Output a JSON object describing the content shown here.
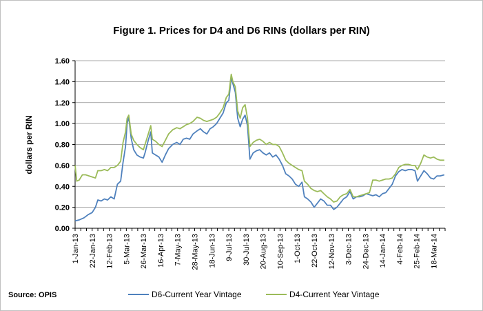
{
  "source_label": "Source: OPIS",
  "chart_data": {
    "type": "line",
    "title": "Figure 1. Prices for D4 and D6 RINs (dollars per RIN)",
    "xlabel": "",
    "ylabel": "dollars per RIN",
    "ylim": [
      0,
      1.6
    ],
    "yticks": [
      "0.00",
      "0.20",
      "0.40",
      "0.60",
      "0.80",
      "1.00",
      "1.20",
      "1.40",
      "1.60"
    ],
    "xlim": [
      "2013-01-01",
      "2014-04-01"
    ],
    "xticks": [
      "1-Jan-13",
      "22-Jan-13",
      "12-Feb-13",
      "5-Mar-13",
      "26-Mar-13",
      "16-Apr-13",
      "7-May-13",
      "28-May-13",
      "18-Jun-13",
      "9-Jul-13",
      "30-Jul-13",
      "20-Aug-13",
      "10-Sep-13",
      "1-Oct-13",
      "22-Oct-13",
      "12-Nov-13",
      "3-Dec-13",
      "24-Dec-13",
      "14-Jan-14",
      "4-Feb-14",
      "25-Feb-14",
      "18-Mar-14"
    ],
    "grid": true,
    "legend_position": "bottom",
    "series": [
      {
        "name": "D6-Current Year Vintage",
        "color": "#4f81bd",
        "points": [
          [
            "2013-01-01",
            0.07
          ],
          [
            "2013-01-06",
            0.08
          ],
          [
            "2013-01-12",
            0.1
          ],
          [
            "2013-01-17",
            0.13
          ],
          [
            "2013-01-22",
            0.15
          ],
          [
            "2013-01-26",
            0.2
          ],
          [
            "2013-01-29",
            0.27
          ],
          [
            "2013-02-02",
            0.26
          ],
          [
            "2013-02-06",
            0.28
          ],
          [
            "2013-02-10",
            0.27
          ],
          [
            "2013-02-14",
            0.3
          ],
          [
            "2013-02-18",
            0.28
          ],
          [
            "2013-02-22",
            0.42
          ],
          [
            "2013-02-26",
            0.45
          ],
          [
            "2013-03-01",
            0.63
          ],
          [
            "2013-03-04",
            0.78
          ],
          [
            "2013-03-06",
            1.0
          ],
          [
            "2013-03-08",
            1.06
          ],
          [
            "2013-03-11",
            0.86
          ],
          [
            "2013-03-14",
            0.75
          ],
          [
            "2013-03-18",
            0.7
          ],
          [
            "2013-03-22",
            0.68
          ],
          [
            "2013-03-26",
            0.67
          ],
          [
            "2013-03-28",
            0.72
          ],
          [
            "2013-04-01",
            0.84
          ],
          [
            "2013-04-04",
            0.92
          ],
          [
            "2013-04-06",
            0.72
          ],
          [
            "2013-04-10",
            0.7
          ],
          [
            "2013-04-14",
            0.68
          ],
          [
            "2013-04-18",
            0.63
          ],
          [
            "2013-04-22",
            0.7
          ],
          [
            "2013-04-26",
            0.76
          ],
          [
            "2013-05-01",
            0.8
          ],
          [
            "2013-05-06",
            0.82
          ],
          [
            "2013-05-10",
            0.8
          ],
          [
            "2013-05-14",
            0.85
          ],
          [
            "2013-05-18",
            0.86
          ],
          [
            "2013-05-22",
            0.85
          ],
          [
            "2013-05-26",
            0.9
          ],
          [
            "2013-05-31",
            0.93
          ],
          [
            "2013-06-04",
            0.95
          ],
          [
            "2013-06-08",
            0.92
          ],
          [
            "2013-06-12",
            0.9
          ],
          [
            "2013-06-16",
            0.95
          ],
          [
            "2013-06-20",
            0.97
          ],
          [
            "2013-06-24",
            1.0
          ],
          [
            "2013-06-28",
            1.05
          ],
          [
            "2013-07-02",
            1.1
          ],
          [
            "2013-07-06",
            1.2
          ],
          [
            "2013-07-09",
            1.22
          ],
          [
            "2013-07-12",
            1.44
          ],
          [
            "2013-07-14",
            1.38
          ],
          [
            "2013-07-17",
            1.3
          ],
          [
            "2013-07-20",
            1.05
          ],
          [
            "2013-07-23",
            0.97
          ],
          [
            "2013-07-26",
            1.04
          ],
          [
            "2013-07-29",
            1.08
          ],
          [
            "2013-08-01",
            0.98
          ],
          [
            "2013-08-04",
            0.66
          ],
          [
            "2013-08-08",
            0.72
          ],
          [
            "2013-08-12",
            0.74
          ],
          [
            "2013-08-16",
            0.75
          ],
          [
            "2013-08-20",
            0.72
          ],
          [
            "2013-08-24",
            0.7
          ],
          [
            "2013-08-28",
            0.72
          ],
          [
            "2013-09-01",
            0.68
          ],
          [
            "2013-09-05",
            0.7
          ],
          [
            "2013-09-09",
            0.66
          ],
          [
            "2013-09-13",
            0.6
          ],
          [
            "2013-09-17",
            0.52
          ],
          [
            "2013-09-21",
            0.5
          ],
          [
            "2013-09-25",
            0.47
          ],
          [
            "2013-09-29",
            0.42
          ],
          [
            "2013-10-03",
            0.4
          ],
          [
            "2013-10-07",
            0.44
          ],
          [
            "2013-10-10",
            0.3
          ],
          [
            "2013-10-14",
            0.28
          ],
          [
            "2013-10-18",
            0.25
          ],
          [
            "2013-10-22",
            0.2
          ],
          [
            "2013-10-26",
            0.24
          ],
          [
            "2013-10-30",
            0.28
          ],
          [
            "2013-11-03",
            0.26
          ],
          [
            "2013-11-07",
            0.22
          ],
          [
            "2013-11-11",
            0.22
          ],
          [
            "2013-11-15",
            0.18
          ],
          [
            "2013-11-19",
            0.2
          ],
          [
            "2013-11-23",
            0.24
          ],
          [
            "2013-11-27",
            0.28
          ],
          [
            "2013-12-01",
            0.3
          ],
          [
            "2013-12-05",
            0.35
          ],
          [
            "2013-12-09",
            0.28
          ],
          [
            "2013-12-13",
            0.3
          ],
          [
            "2013-12-17",
            0.3
          ],
          [
            "2013-12-21",
            0.31
          ],
          [
            "2013-12-25",
            0.33
          ],
          [
            "2013-12-29",
            0.32
          ],
          [
            "2014-01-02",
            0.31
          ],
          [
            "2014-01-06",
            0.32
          ],
          [
            "2014-01-10",
            0.3
          ],
          [
            "2014-01-14",
            0.33
          ],
          [
            "2014-01-18",
            0.34
          ],
          [
            "2014-01-22",
            0.38
          ],
          [
            "2014-01-26",
            0.42
          ],
          [
            "2014-01-30",
            0.5
          ],
          [
            "2014-02-03",
            0.54
          ],
          [
            "2014-02-07",
            0.56
          ],
          [
            "2014-02-11",
            0.55
          ],
          [
            "2014-02-15",
            0.56
          ],
          [
            "2014-02-19",
            0.56
          ],
          [
            "2014-02-23",
            0.55
          ],
          [
            "2014-02-26",
            0.45
          ],
          [
            "2014-03-02",
            0.5
          ],
          [
            "2014-03-06",
            0.55
          ],
          [
            "2014-03-10",
            0.52
          ],
          [
            "2014-03-14",
            0.48
          ],
          [
            "2014-03-18",
            0.47
          ],
          [
            "2014-03-22",
            0.5
          ],
          [
            "2014-03-26",
            0.5
          ],
          [
            "2014-03-31",
            0.51
          ]
        ]
      },
      {
        "name": "D4-Current Year Vintage",
        "color": "#9bbb59",
        "points": [
          [
            "2013-01-01",
            0.6
          ],
          [
            "2013-01-03",
            0.45
          ],
          [
            "2013-01-06",
            0.46
          ],
          [
            "2013-01-10",
            0.51
          ],
          [
            "2013-01-14",
            0.51
          ],
          [
            "2013-01-18",
            0.5
          ],
          [
            "2013-01-22",
            0.49
          ],
          [
            "2013-01-26",
            0.48
          ],
          [
            "2013-01-29",
            0.55
          ],
          [
            "2013-02-02",
            0.55
          ],
          [
            "2013-02-06",
            0.56
          ],
          [
            "2013-02-10",
            0.55
          ],
          [
            "2013-02-14",
            0.58
          ],
          [
            "2013-02-18",
            0.58
          ],
          [
            "2013-02-22",
            0.6
          ],
          [
            "2013-02-26",
            0.64
          ],
          [
            "2013-03-01",
            0.82
          ],
          [
            "2013-03-04",
            0.92
          ],
          [
            "2013-03-06",
            1.05
          ],
          [
            "2013-03-08",
            1.08
          ],
          [
            "2013-03-11",
            0.9
          ],
          [
            "2013-03-14",
            0.84
          ],
          [
            "2013-03-18",
            0.8
          ],
          [
            "2013-03-22",
            0.77
          ],
          [
            "2013-03-26",
            0.75
          ],
          [
            "2013-03-28",
            0.8
          ],
          [
            "2013-04-01",
            0.9
          ],
          [
            "2013-04-04",
            0.98
          ],
          [
            "2013-04-06",
            0.85
          ],
          [
            "2013-04-10",
            0.83
          ],
          [
            "2013-04-14",
            0.8
          ],
          [
            "2013-04-18",
            0.78
          ],
          [
            "2013-04-22",
            0.84
          ],
          [
            "2013-04-26",
            0.9
          ],
          [
            "2013-05-01",
            0.94
          ],
          [
            "2013-05-06",
            0.96
          ],
          [
            "2013-05-10",
            0.95
          ],
          [
            "2013-05-14",
            0.97
          ],
          [
            "2013-05-18",
            0.99
          ],
          [
            "2013-05-22",
            1.0
          ],
          [
            "2013-05-26",
            1.02
          ],
          [
            "2013-05-31",
            1.06
          ],
          [
            "2013-06-04",
            1.05
          ],
          [
            "2013-06-08",
            1.03
          ],
          [
            "2013-06-12",
            1.02
          ],
          [
            "2013-06-16",
            1.03
          ],
          [
            "2013-06-20",
            1.04
          ],
          [
            "2013-06-24",
            1.06
          ],
          [
            "2013-06-28",
            1.1
          ],
          [
            "2013-07-02",
            1.15
          ],
          [
            "2013-07-06",
            1.25
          ],
          [
            "2013-07-09",
            1.28
          ],
          [
            "2013-07-12",
            1.47
          ],
          [
            "2013-07-14",
            1.4
          ],
          [
            "2013-07-17",
            1.35
          ],
          [
            "2013-07-20",
            1.12
          ],
          [
            "2013-07-23",
            1.05
          ],
          [
            "2013-07-26",
            1.15
          ],
          [
            "2013-07-29",
            1.18
          ],
          [
            "2013-08-01",
            1.05
          ],
          [
            "2013-08-04",
            0.78
          ],
          [
            "2013-08-08",
            0.82
          ],
          [
            "2013-08-12",
            0.84
          ],
          [
            "2013-08-16",
            0.85
          ],
          [
            "2013-08-20",
            0.83
          ],
          [
            "2013-08-24",
            0.8
          ],
          [
            "2013-08-28",
            0.82
          ],
          [
            "2013-09-01",
            0.8
          ],
          [
            "2013-09-05",
            0.8
          ],
          [
            "2013-09-09",
            0.78
          ],
          [
            "2013-09-13",
            0.72
          ],
          [
            "2013-09-17",
            0.65
          ],
          [
            "2013-09-21",
            0.62
          ],
          [
            "2013-09-25",
            0.6
          ],
          [
            "2013-09-29",
            0.58
          ],
          [
            "2013-10-03",
            0.56
          ],
          [
            "2013-10-07",
            0.55
          ],
          [
            "2013-10-10",
            0.45
          ],
          [
            "2013-10-14",
            0.42
          ],
          [
            "2013-10-18",
            0.38
          ],
          [
            "2013-10-22",
            0.36
          ],
          [
            "2013-10-26",
            0.35
          ],
          [
            "2013-10-30",
            0.36
          ],
          [
            "2013-11-03",
            0.33
          ],
          [
            "2013-11-07",
            0.3
          ],
          [
            "2013-11-11",
            0.28
          ],
          [
            "2013-11-15",
            0.25
          ],
          [
            "2013-11-19",
            0.26
          ],
          [
            "2013-11-23",
            0.3
          ],
          [
            "2013-11-27",
            0.32
          ],
          [
            "2013-12-01",
            0.33
          ],
          [
            "2013-12-05",
            0.37
          ],
          [
            "2013-12-09",
            0.3
          ],
          [
            "2013-12-13",
            0.3
          ],
          [
            "2013-12-17",
            0.31
          ],
          [
            "2013-12-21",
            0.32
          ],
          [
            "2013-12-25",
            0.33
          ],
          [
            "2013-12-29",
            0.34
          ],
          [
            "2014-01-02",
            0.46
          ],
          [
            "2014-01-06",
            0.46
          ],
          [
            "2014-01-10",
            0.45
          ],
          [
            "2014-01-14",
            0.46
          ],
          [
            "2014-01-18",
            0.47
          ],
          [
            "2014-01-22",
            0.47
          ],
          [
            "2014-01-26",
            0.48
          ],
          [
            "2014-01-30",
            0.52
          ],
          [
            "2014-02-03",
            0.58
          ],
          [
            "2014-02-07",
            0.6
          ],
          [
            "2014-02-11",
            0.61
          ],
          [
            "2014-02-15",
            0.61
          ],
          [
            "2014-02-19",
            0.6
          ],
          [
            "2014-02-23",
            0.6
          ],
          [
            "2014-02-26",
            0.56
          ],
          [
            "2014-03-02",
            0.62
          ],
          [
            "2014-03-06",
            0.7
          ],
          [
            "2014-03-10",
            0.68
          ],
          [
            "2014-03-14",
            0.67
          ],
          [
            "2014-03-18",
            0.68
          ],
          [
            "2014-03-22",
            0.66
          ],
          [
            "2014-03-26",
            0.65
          ],
          [
            "2014-03-31",
            0.65
          ]
        ]
      }
    ]
  }
}
